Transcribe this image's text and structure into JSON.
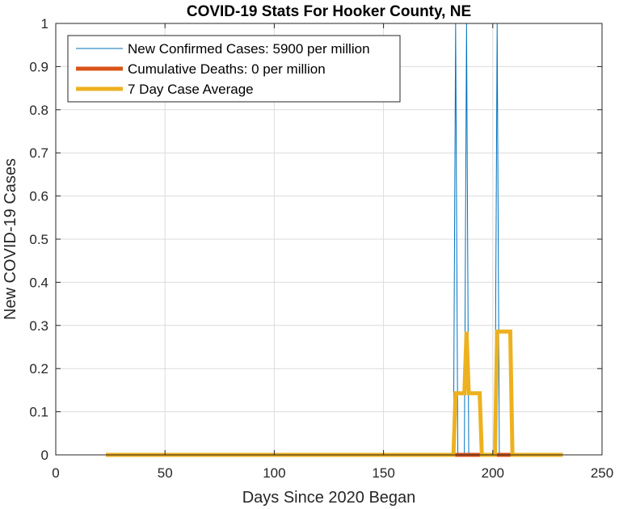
{
  "chart_data": {
    "type": "line",
    "title": "COVID-19 Stats For Hooker County, NE",
    "xlabel": "Days Since 2020 Began",
    "ylabel": "New COVID-19 Cases",
    "xlim": [
      0,
      250
    ],
    "ylim": [
      0,
      1
    ],
    "xticks": [
      0,
      50,
      100,
      150,
      200,
      250
    ],
    "xtick_labels": [
      "0",
      "50",
      "100",
      "150",
      "200",
      "250"
    ],
    "yticks": [
      0,
      0.1,
      0.2,
      0.3,
      0.4,
      0.5,
      0.6,
      0.7,
      0.8,
      0.9,
      1
    ],
    "ytick_labels": [
      "0",
      "0.1",
      "0.2",
      "0.3",
      "0.4",
      "0.5",
      "0.6",
      "0.7",
      "0.8",
      "0.9",
      "1"
    ],
    "grid": true,
    "legend_position": "top-left",
    "series": [
      {
        "name": "New Confirmed Cases: 5900 per million",
        "color": "#0072BD",
        "x": [
          23,
          182,
          183,
          184,
          187,
          188,
          189,
          201,
          202,
          203,
          232
        ],
        "y": [
          0,
          0,
          1,
          0,
          0,
          1,
          0,
          0,
          1,
          0,
          0
        ]
      },
      {
        "name": "Cumulative Deaths: 0 per million",
        "color": "#D95319",
        "x": [
          23,
          232
        ],
        "y": [
          0,
          0
        ]
      },
      {
        "name": "7 Day Case Average",
        "color": "#EDB120",
        "x": [
          23,
          182,
          183,
          187,
          188,
          189,
          194,
          195,
          201,
          202,
          208,
          209,
          232
        ],
        "y": [
          0,
          0,
          0.142857,
          0.142857,
          0.285714,
          0.142857,
          0.142857,
          0,
          0,
          0.285714,
          0.285714,
          0,
          0
        ]
      }
    ]
  }
}
